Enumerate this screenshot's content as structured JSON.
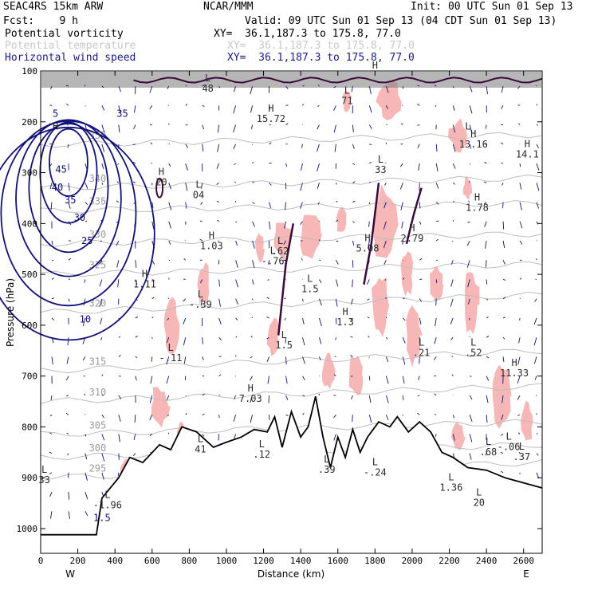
{
  "header": {
    "model": "SEAC4RS 15km ARW",
    "org": "NCAR/MMM",
    "init": "Init: 00 UTC Sun 01 Sep 13",
    "fcst": "Fcst:    9 h",
    "valid": "Valid: 09 UTC Sun 01 Sep 13 (04 CDT Sun 01 Sep 13)",
    "fields": [
      {
        "name": "Potential vorticity",
        "xy": "XY=  36.1,187.3 to 175.8, 77.0",
        "color": "#000000"
      },
      {
        "name": "Potential temperature",
        "xy": "XY=  36.1,187.3 to 175.8, 77.0",
        "color": "#c8c8c8"
      },
      {
        "name": "Horizontal wind speed",
        "xy": "XY=  36.1,187.3 to 175.8, 77.0",
        "color": "#1a1a8c"
      }
    ]
  },
  "chart_data": {
    "type": "cross-section",
    "xlabel": "Distance (km)",
    "ylabel": "Pressure (hPa)",
    "xlim": [
      0,
      2700
    ],
    "ylim": [
      1050,
      100
    ],
    "x_ticks": [
      "0",
      "200",
      "400",
      "600",
      "800",
      "1000",
      "1200",
      "1400",
      "1600",
      "1800",
      "2000",
      "2200",
      "2400",
      "2600"
    ],
    "y_ticks": [
      "100",
      "200",
      "300",
      "400",
      "500",
      "600",
      "700",
      "800",
      "900",
      "1000"
    ],
    "x_ends": [
      "W",
      "E"
    ],
    "terrain_pressure": [
      {
        "x": 0,
        "p": 1012
      },
      {
        "x": 300,
        "p": 1012
      },
      {
        "x": 330,
        "p": 940
      },
      {
        "x": 420,
        "p": 900
      },
      {
        "x": 480,
        "p": 860
      },
      {
        "x": 550,
        "p": 870
      },
      {
        "x": 640,
        "p": 835
      },
      {
        "x": 700,
        "p": 845
      },
      {
        "x": 760,
        "p": 800
      },
      {
        "x": 840,
        "p": 810
      },
      {
        "x": 930,
        "p": 840
      },
      {
        "x": 1000,
        "p": 830
      },
      {
        "x": 1080,
        "p": 820
      },
      {
        "x": 1150,
        "p": 805
      },
      {
        "x": 1220,
        "p": 810
      },
      {
        "x": 1260,
        "p": 780
      },
      {
        "x": 1300,
        "p": 840
      },
      {
        "x": 1350,
        "p": 770
      },
      {
        "x": 1400,
        "p": 820
      },
      {
        "x": 1440,
        "p": 800
      },
      {
        "x": 1480,
        "p": 740
      },
      {
        "x": 1520,
        "p": 820
      },
      {
        "x": 1560,
        "p": 880
      },
      {
        "x": 1600,
        "p": 820
      },
      {
        "x": 1640,
        "p": 860
      },
      {
        "x": 1680,
        "p": 805
      },
      {
        "x": 1720,
        "p": 850
      },
      {
        "x": 1760,
        "p": 820
      },
      {
        "x": 1820,
        "p": 790
      },
      {
        "x": 1880,
        "p": 800
      },
      {
        "x": 1920,
        "p": 780
      },
      {
        "x": 1980,
        "p": 810
      },
      {
        "x": 2040,
        "p": 790
      },
      {
        "x": 2100,
        "p": 810
      },
      {
        "x": 2160,
        "p": 850
      },
      {
        "x": 2220,
        "p": 860
      },
      {
        "x": 2300,
        "p": 880
      },
      {
        "x": 2400,
        "p": 885
      },
      {
        "x": 2500,
        "p": 900
      },
      {
        "x": 2600,
        "p": 910
      },
      {
        "x": 2700,
        "p": 920
      }
    ],
    "theta_contours": [
      {
        "value": "295",
        "p_left": 900,
        "p_right": 870
      },
      {
        "value": "300",
        "p_left": 860,
        "p_right": 835
      },
      {
        "value": "305",
        "p_left": 815,
        "p_right": 790
      },
      {
        "value": "310",
        "p_left": 750,
        "p_right": 720
      },
      {
        "value": "315",
        "p_left": 690,
        "p_right": 650
      },
      {
        "value": "320",
        "p_left": 575,
        "p_right": 540
      },
      {
        "value": "325",
        "p_left": 500,
        "p_right": 480
      },
      {
        "value": "330",
        "p_left": 440,
        "p_right": 420
      },
      {
        "value": "335",
        "p_left": 375,
        "p_right": 360
      },
      {
        "value": "340",
        "p_left": 330,
        "p_right": 310
      },
      {
        "value": "350",
        "p_left": 245,
        "p_right": 225
      }
    ],
    "wind_speed_labels": [
      {
        "x": 80,
        "p": 190,
        "text": "5"
      },
      {
        "x": 440,
        "p": 190,
        "text": "35"
      },
      {
        "x": 110,
        "p": 300,
        "text": "45"
      },
      {
        "x": 90,
        "p": 335,
        "text": "40"
      },
      {
        "x": 160,
        "p": 360,
        "text": "35"
      },
      {
        "x": 210,
        "p": 395,
        "text": "30"
      },
      {
        "x": 250,
        "p": 440,
        "text": "25"
      },
      {
        "x": 240,
        "p": 595,
        "text": "10"
      },
      {
        "x": 330,
        "p": 985,
        "text": "1.5"
      }
    ],
    "extrema": [
      {
        "type": "L",
        "x": 900,
        "p": 120,
        "value": "48"
      },
      {
        "type": "H",
        "x": 1240,
        "p": 180,
        "value": "15.72"
      },
      {
        "type": "L",
        "x": 1650,
        "p": 145,
        "value": "71"
      },
      {
        "type": "H",
        "x": 1800,
        "p": 95,
        "value": "H"
      },
      {
        "type": "H",
        "x": 2330,
        "p": 230,
        "value": "13.16"
      },
      {
        "type": "L",
        "x": 2300,
        "p": 215,
        "value": "L"
      },
      {
        "type": "H",
        "x": 2620,
        "p": 250,
        "value": "14.1"
      },
      {
        "type": "H",
        "x": 80,
        "p": 215,
        "value": "H"
      },
      {
        "type": "L",
        "x": 1830,
        "p": 280,
        "value": "33"
      },
      {
        "type": "L",
        "x": 850,
        "p": 330,
        "value": "04"
      },
      {
        "type": "H",
        "x": 2350,
        "p": 355,
        "value": "1.78"
      },
      {
        "type": "H",
        "x": 650,
        "p": 305,
        "value": "20"
      },
      {
        "type": "H",
        "x": 920,
        "p": 430,
        "value": "1.03"
      },
      {
        "type": "L",
        "x": 1290,
        "p": 440,
        "value": ".62"
      },
      {
        "type": "L",
        "x": 1250,
        "p": 460,
        "value": "-.76"
      },
      {
        "type": "H",
        "x": 1760,
        "p": 435,
        "value": "5.08"
      },
      {
        "type": "H",
        "x": 2000,
        "p": 415,
        "value": "2.79"
      },
      {
        "type": "H",
        "x": 560,
        "p": 505,
        "value": "1.11"
      },
      {
        "type": "L",
        "x": 860,
        "p": 545,
        "value": "-.39"
      },
      {
        "type": "L",
        "x": 1450,
        "p": 515,
        "value": "1.5"
      },
      {
        "type": "H",
        "x": 1640,
        "p": 580,
        "value": "1.3"
      },
      {
        "type": "L",
        "x": 700,
        "p": 650,
        "value": "-.11"
      },
      {
        "type": "L",
        "x": 1310,
        "p": 625,
        "value": "1.5"
      },
      {
        "type": "L",
        "x": 2050,
        "p": 640,
        "value": ".21"
      },
      {
        "type": "L",
        "x": 2330,
        "p": 640,
        "value": ".52"
      },
      {
        "type": "H",
        "x": 2550,
        "p": 680,
        "value": "11.33"
      },
      {
        "type": "H",
        "x": 1130,
        "p": 730,
        "value": "7.03"
      },
      {
        "type": "L",
        "x": 860,
        "p": 830,
        "value": "41"
      },
      {
        "type": "L",
        "x": 1190,
        "p": 840,
        "value": ".12"
      },
      {
        "type": "L",
        "x": 1540,
        "p": 870,
        "value": ".39"
      },
      {
        "type": "L",
        "x": 1800,
        "p": 875,
        "value": "-.24"
      },
      {
        "type": "L",
        "x": 2410,
        "p": 835,
        "value": ".68"
      },
      {
        "type": "L",
        "x": 2520,
        "p": 825,
        "value": "-.06"
      },
      {
        "type": "L",
        "x": 2590,
        "p": 845,
        "value": ".37"
      },
      {
        "type": "L",
        "x": 360,
        "p": 940,
        "value": "-1.96"
      },
      {
        "type": "L",
        "x": 2210,
        "p": 905,
        "value": "1.36"
      },
      {
        "type": "L",
        "x": 2360,
        "p": 935,
        "value": "20"
      },
      {
        "type": "L",
        "x": 20,
        "p": 890,
        "value": "33"
      }
    ],
    "grid": false,
    "colors": {
      "pv": "#3a0a3a",
      "theta": "#bdbdbd",
      "wind": "#10107a",
      "shading": "#f7b7b7",
      "terrain": "#000000"
    }
  }
}
